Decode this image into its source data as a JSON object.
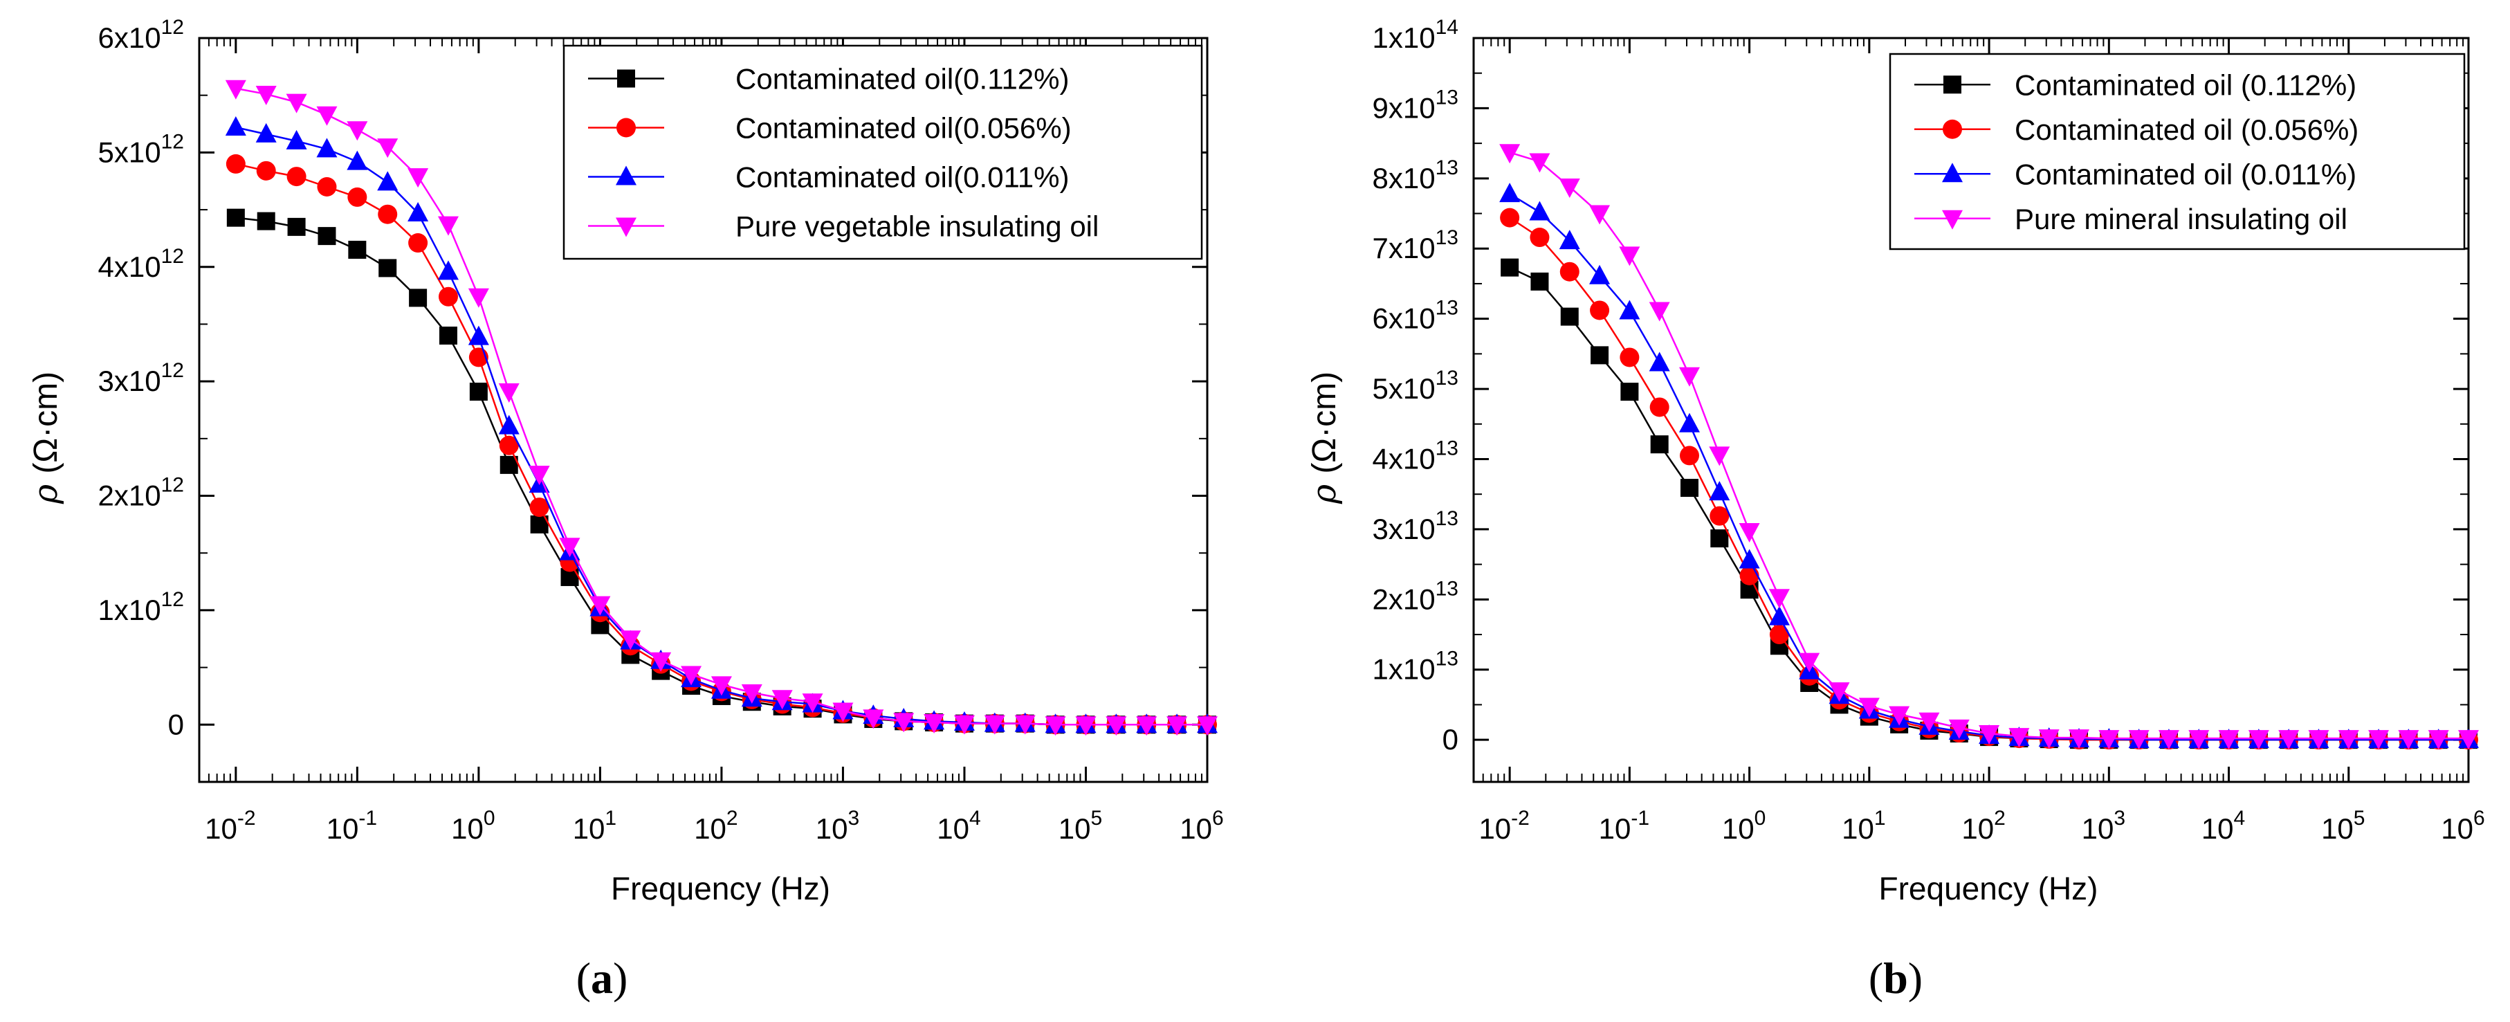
{
  "figure": {
    "panels": [
      {
        "label_open": "(",
        "label_letter": "a",
        "label_close": ")"
      },
      {
        "label_open": "(",
        "label_letter": "b",
        "label_close": ")"
      }
    ]
  },
  "chart_data": [
    {
      "type": "line",
      "x_scale": "log",
      "x": [
        0.01,
        0.01778,
        0.03162,
        0.05623,
        0.1,
        0.1778,
        0.3162,
        0.5623,
        1,
        1.778,
        3.162,
        5.623,
        10,
        17.78,
        31.62,
        56.23,
        100,
        177.8,
        316.2,
        562.3,
        1000,
        1778,
        3162,
        5623,
        10000,
        17780,
        31620,
        56230,
        100000,
        177800,
        316200,
        562300,
        1000000
      ],
      "xlabel": "Frequency (Hz)",
      "ylabel_symbol": "ρ",
      "ylabel_unit": "(Ω·cm)",
      "xlim": [
        0.005,
        1000000
      ],
      "ylim": [
        -500000000000.0,
        6000000000000.0
      ],
      "x_ticks": [
        {
          "value": 0.01,
          "base": "10",
          "exp": "-2"
        },
        {
          "value": 0.1,
          "base": "10",
          "exp": "-1"
        },
        {
          "value": 1,
          "base": "10",
          "exp": "0"
        },
        {
          "value": 10,
          "base": "10",
          "exp": "1"
        },
        {
          "value": 100,
          "base": "10",
          "exp": "2"
        },
        {
          "value": 1000,
          "base": "10",
          "exp": "3"
        },
        {
          "value": 10000,
          "base": "10",
          "exp": "4"
        },
        {
          "value": 100000,
          "base": "10",
          "exp": "5"
        },
        {
          "value": 1000000,
          "base": "10",
          "exp": "6"
        }
      ],
      "y_ticks": [
        {
          "value": 0,
          "mant": "0",
          "exp": ""
        },
        {
          "value": 1000000000000.0,
          "mant": "1x10",
          "exp": "12"
        },
        {
          "value": 2000000000000.0,
          "mant": "2x10",
          "exp": "12"
        },
        {
          "value": 3000000000000.0,
          "mant": "3x10",
          "exp": "12"
        },
        {
          "value": 4000000000000.0,
          "mant": "4x10",
          "exp": "12"
        },
        {
          "value": 5000000000000.0,
          "mant": "5x10",
          "exp": "12"
        },
        {
          "value": 6000000000000.0,
          "mant": "6x10",
          "exp": "12"
        }
      ],
      "legend_position": "top-right",
      "series": [
        {
          "name": "Contaminated oil(0.112%)",
          "color": "#000000",
          "marker": "square",
          "values": [
            4430000000000.0,
            4400000000000.0,
            4350000000000.0,
            4270000000000.0,
            4150000000000.0,
            3990000000000.0,
            3730000000000.0,
            3400000000000.0,
            2910000000000.0,
            2270000000000.0,
            1750000000000.0,
            1290000000000.0,
            870000000000.0,
            610000000000.0,
            470000000000.0,
            340000000000.0,
            250000000000.0,
            200000000000.0,
            160000000000.0,
            140000000000.0,
            90000000000.0,
            50000000000.0,
            30000000000.0,
            20000000000.0,
            10000000000.0,
            10000000000.0,
            10000000000.0,
            0.0,
            0.0,
            0.0,
            0.0,
            0.0,
            0.0
          ]
        },
        {
          "name": "Contaminated oil(0.056%)",
          "color": "#ff0000",
          "marker": "circle",
          "values": [
            4900000000000.0,
            4840000000000.0,
            4790000000000.0,
            4700000000000.0,
            4610000000000.0,
            4460000000000.0,
            4210000000000.0,
            3740000000000.0,
            3210000000000.0,
            2440000000000.0,
            1900000000000.0,
            1420000000000.0,
            980000000000.0,
            690000000000.0,
            530000000000.0,
            380000000000.0,
            290000000000.0,
            220000000000.0,
            180000000000.0,
            150000000000.0,
            100000000000.0,
            60000000000.0,
            30000000000.0,
            20000000000.0,
            10000000000.0,
            10000000000.0,
            10000000000.0,
            0.0,
            0.0,
            0.0,
            0.0,
            0.0,
            0.0
          ]
        },
        {
          "name": "Contaminated oil(0.011%)",
          "color": "#0000ff",
          "marker": "triangle-up",
          "values": [
            5220000000000.0,
            5160000000000.0,
            5100000000000.0,
            5030000000000.0,
            4920000000000.0,
            4740000000000.0,
            4470000000000.0,
            3960000000000.0,
            3390000000000.0,
            2610000000000.0,
            2100000000000.0,
            1510000000000.0,
            1020000000000.0,
            730000000000.0,
            560000000000.0,
            400000000000.0,
            300000000000.0,
            230000000000.0,
            200000000000.0,
            180000000000.0,
            120000000000.0,
            80000000000.0,
            50000000000.0,
            30000000000.0,
            20000000000.0,
            10000000000.0,
            10000000000.0,
            0.0,
            0.0,
            0.0,
            0.0,
            0.0,
            0.0
          ]
        },
        {
          "name": "Pure vegetable insulating oil",
          "color": "#ff00ff",
          "marker": "triangle-down",
          "values": [
            5560000000000.0,
            5510000000000.0,
            5440000000000.0,
            5330000000000.0,
            5200000000000.0,
            5050000000000.0,
            4790000000000.0,
            4370000000000.0,
            3740000000000.0,
            2910000000000.0,
            2190000000000.0,
            1560000000000.0,
            1050000000000.0,
            750000000000.0,
            560000000000.0,
            440000000000.0,
            350000000000.0,
            280000000000.0,
            230000000000.0,
            200000000000.0,
            120000000000.0,
            60000000000.0,
            30000000000.0,
            20000000000.0,
            10000000000.0,
            10000000000.0,
            10000000000.0,
            0.0,
            0.0,
            0.0,
            0.0,
            0.0,
            0.0
          ]
        }
      ]
    },
    {
      "type": "line",
      "x_scale": "log",
      "x": [
        0.01,
        0.01778,
        0.03162,
        0.05623,
        0.1,
        0.1778,
        0.3162,
        0.5623,
        1,
        1.778,
        3.162,
        5.623,
        10,
        17.78,
        31.62,
        56.23,
        100,
        177.8,
        316.2,
        562.3,
        1000,
        1778,
        3162,
        5623,
        10000,
        17780,
        31620,
        56230,
        100000,
        177800,
        316200,
        562300,
        1000000
      ],
      "xlabel": "Frequency (Hz)",
      "ylabel_symbol": "ρ",
      "ylabel_unit": "(Ω·cm)",
      "xlim": [
        0.005,
        1000000
      ],
      "ylim": [
        -6000000000000.0,
        100000000000000.0
      ],
      "x_ticks": [
        {
          "value": 0.01,
          "base": "10",
          "exp": "-2"
        },
        {
          "value": 0.1,
          "base": "10",
          "exp": "-1"
        },
        {
          "value": 1,
          "base": "10",
          "exp": "0"
        },
        {
          "value": 10,
          "base": "10",
          "exp": "1"
        },
        {
          "value": 100,
          "base": "10",
          "exp": "2"
        },
        {
          "value": 1000,
          "base": "10",
          "exp": "3"
        },
        {
          "value": 10000,
          "base": "10",
          "exp": "4"
        },
        {
          "value": 100000,
          "base": "10",
          "exp": "5"
        },
        {
          "value": 1000000,
          "base": "10",
          "exp": "6"
        }
      ],
      "y_ticks": [
        {
          "value": 0,
          "mant": "0",
          "exp": ""
        },
        {
          "value": 10000000000000.0,
          "mant": "1x10",
          "exp": "13"
        },
        {
          "value": 20000000000000.0,
          "mant": "2x10",
          "exp": "13"
        },
        {
          "value": 30000000000000.0,
          "mant": "3x10",
          "exp": "13"
        },
        {
          "value": 40000000000000.0,
          "mant": "4x10",
          "exp": "13"
        },
        {
          "value": 50000000000000.0,
          "mant": "5x10",
          "exp": "13"
        },
        {
          "value": 60000000000000.0,
          "mant": "6x10",
          "exp": "13"
        },
        {
          "value": 70000000000000.0,
          "mant": "7x10",
          "exp": "13"
        },
        {
          "value": 80000000000000.0,
          "mant": "8x10",
          "exp": "13"
        },
        {
          "value": 90000000000000.0,
          "mant": "9x10",
          "exp": "13"
        },
        {
          "value": 100000000000000.0,
          "mant": "1x10",
          "exp": "14"
        }
      ],
      "legend_position": "top-right",
      "series": [
        {
          "name": "Contaminated oil (0.112%)",
          "color": "#000000",
          "marker": "square",
          "values": [
            67300000000000.0,
            65300000000000.0,
            60300000000000.0,
            54800000000000.0,
            49600000000000.0,
            42100000000000.0,
            35900000000000.0,
            28700000000000.0,
            21400000000000.0,
            13400000000000.0,
            8100000000000.0,
            5000000000000.0,
            3300000000000.0,
            2200000000000.0,
            1300000000000.0,
            900000000000.0,
            400000000000.0,
            200000000000.0,
            100000000000.0,
            0.0,
            0.0,
            0.0,
            0.0,
            0.0,
            0.0,
            0.0,
            0.0,
            0.0,
            0.0,
            0.0,
            0.0,
            0.0,
            0.0
          ]
        },
        {
          "name": "Contaminated oil (0.056%)",
          "color": "#ff0000",
          "marker": "circle",
          "values": [
            74400000000000.0,
            71600000000000.0,
            66700000000000.0,
            61200000000000.0,
            54500000000000.0,
            47400000000000.0,
            40500000000000.0,
            31900000000000.0,
            23400000000000.0,
            15000000000000.0,
            9100000000000.0,
            5700000000000.0,
            3800000000000.0,
            2600000000000.0,
            1600000000000.0,
            1000000000000.0,
            500000000000.0,
            200000000000.0,
            100000000000.0,
            0.0,
            0.0,
            0.0,
            0.0,
            0.0,
            0.0,
            0.0,
            0.0,
            0.0,
            0.0,
            0.0,
            0.0,
            0.0,
            0.0
          ]
        },
        {
          "name": "Contaminated oil (0.011%)",
          "color": "#0000ff",
          "marker": "triangle-up",
          "values": [
            77800000000000.0,
            75200000000000.0,
            71100000000000.0,
            66100000000000.0,
            61100000000000.0,
            53700000000000.0,
            45000000000000.0,
            35300000000000.0,
            25600000000000.0,
            17500000000000.0,
            9800000000000.0,
            6300000000000.0,
            4200000000000.0,
            2900000000000.0,
            1900000000000.0,
            1200000000000.0,
            600000000000.0,
            300000000000.0,
            200000000000.0,
            100000000000.0,
            100000000000.0,
            0.0,
            0.0,
            0.0,
            0.0,
            0.0,
            0.0,
            0.0,
            0.0,
            0.0,
            0.0,
            0.0,
            0.0
          ]
        },
        {
          "name": "Pure mineral insulating oil",
          "color": "#ff00ff",
          "marker": "triangle-down",
          "values": [
            83700000000000.0,
            82400000000000.0,
            78800000000000.0,
            75000000000000.0,
            69100000000000.0,
            61200000000000.0,
            51900000000000.0,
            40600000000000.0,
            29700000000000.0,
            20300000000000.0,
            11200000000000.0,
            7000000000000.0,
            4800000000000.0,
            3600000000000.0,
            2700000000000.0,
            1700000000000.0,
            900000000000.0,
            500000000000.0,
            300000000000.0,
            300000000000.0,
            200000000000.0,
            200000000000.0,
            200000000000.0,
            200000000000.0,
            200000000000.0,
            200000000000.0,
            200000000000.0,
            200000000000.0,
            200000000000.0,
            200000000000.0,
            200000000000.0,
            200000000000.0,
            200000000000.0
          ]
        }
      ]
    }
  ]
}
